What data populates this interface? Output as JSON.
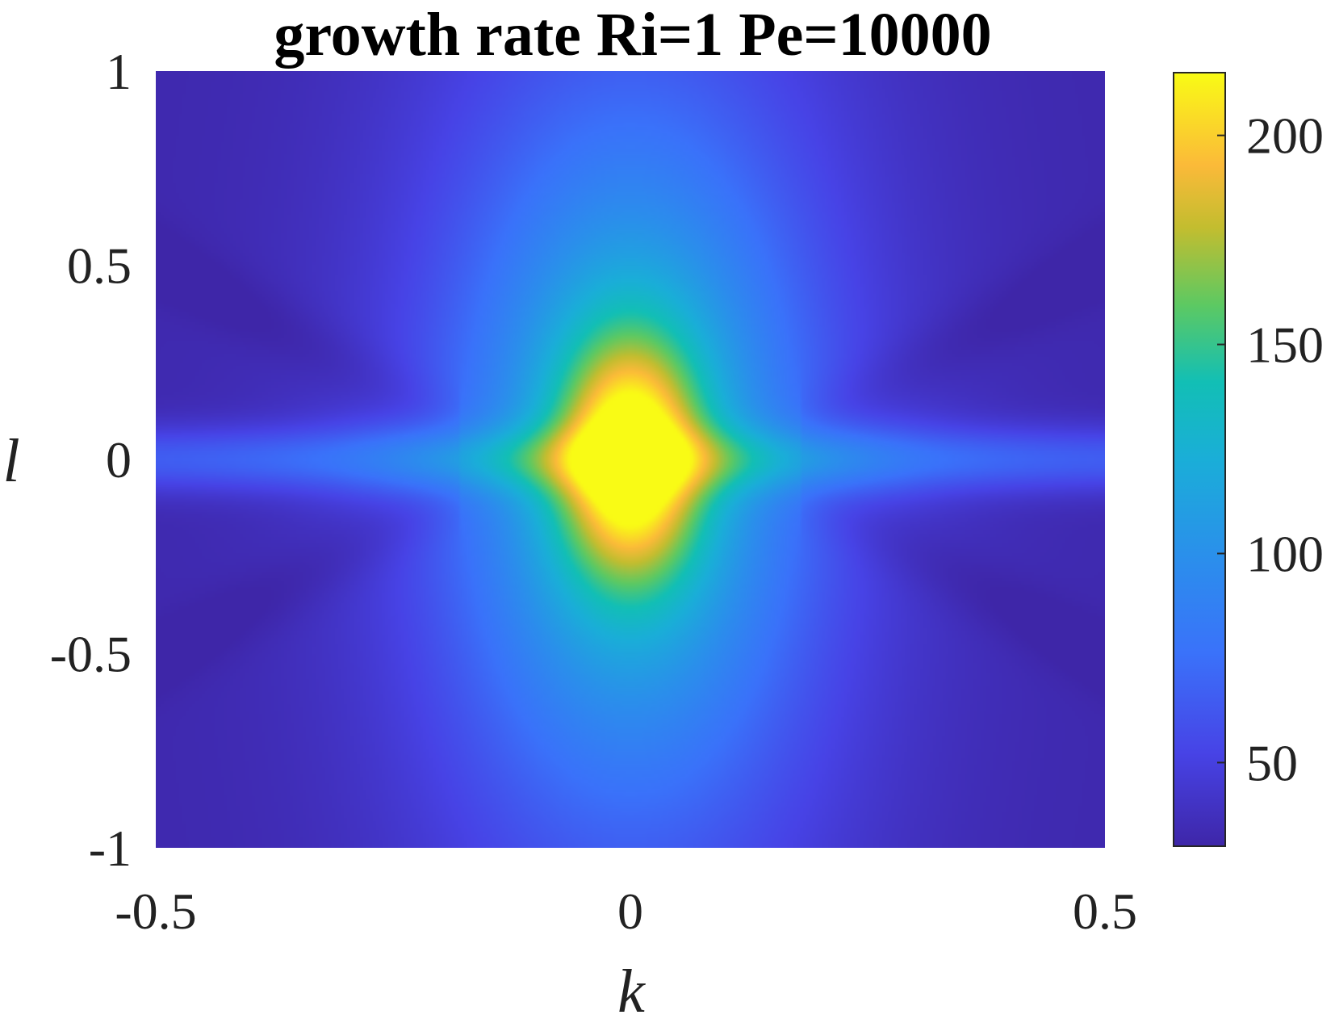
{
  "chart_data": {
    "type": "heatmap",
    "title": "growth rate Ri=1 Pe=10000",
    "xlabel": "k",
    "ylabel": "l",
    "xlim": [
      -0.5,
      0.5
    ],
    "ylim": [
      -1,
      1
    ],
    "xticks": [
      -0.5,
      0,
      0.5
    ],
    "xtick_labels": [
      "-0.5",
      "0",
      "0.5"
    ],
    "yticks": [
      -1,
      -0.5,
      0,
      0.5,
      1
    ],
    "ytick_labels": [
      "-1",
      "-0.5",
      "0",
      "0.5",
      "1"
    ],
    "colormap": "parula",
    "colorbar": {
      "range": [
        30,
        215
      ],
      "ticks": [
        50,
        100,
        150,
        200
      ],
      "tick_labels": [
        "50",
        "100",
        "150",
        "200"
      ]
    },
    "field": {
      "description_values": "peak at k=0, l=0",
      "peak_value": 215,
      "peak_location": [
        0,
        0
      ],
      "background_min": 32,
      "horizontal_band_value_at_l0": 85
    }
  }
}
